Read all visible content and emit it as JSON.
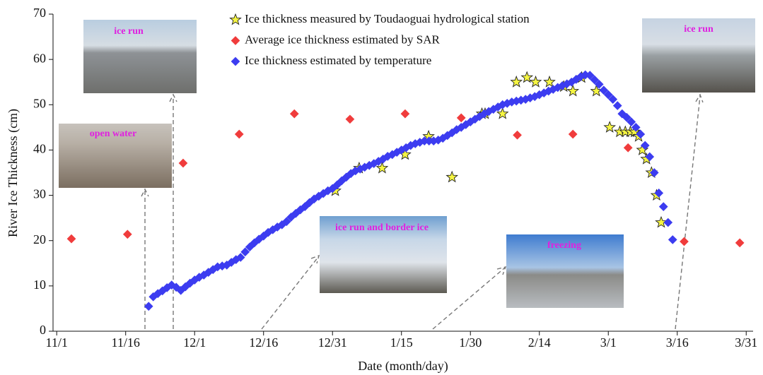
{
  "chart_data": {
    "type": "scatter",
    "x_label": "Date (month/day)",
    "y_label": "River Ice Thickness (cm)",
    "xlim": [
      -0.8,
      151.5
    ],
    "ylim": [
      0,
      70
    ],
    "xticks": [
      {
        "value": 0,
        "label": "11/1"
      },
      {
        "value": 15,
        "label": "11/16"
      },
      {
        "value": 30,
        "label": "12/1"
      },
      {
        "value": 45,
        "label": "12/16"
      },
      {
        "value": 60,
        "label": "12/31"
      },
      {
        "value": 75,
        "label": "1/15"
      },
      {
        "value": 90,
        "label": "1/30"
      },
      {
        "value": 105,
        "label": "2/14"
      },
      {
        "value": 120,
        "label": "3/1"
      },
      {
        "value": 135,
        "label": "3/16"
      },
      {
        "value": 150,
        "label": "3/31"
      }
    ],
    "yticks": [
      0,
      10,
      20,
      30,
      40,
      50,
      60,
      70
    ],
    "annotations": [
      "ice run",
      "open water",
      "ice run and border ice",
      "freezing",
      "ice run"
    ],
    "series": [
      {
        "name": "Ice thickness measured by Toudaoguai hydrological station",
        "color": "#f5f542",
        "marker": "star",
        "x": [
          60.6,
          65.8,
          70.8,
          75.8,
          80.9,
          86,
          92.5,
          93.2,
          97,
          100,
          102.3,
          104.2,
          107.2,
          110.3,
          112.3,
          114.2,
          117.4,
          120.3,
          122.5,
          123.7,
          124.8,
          125.7,
          126.6,
          127.4,
          128.3,
          129.4,
          130.5,
          131.5
        ],
        "values": [
          31,
          36,
          36,
          39,
          43,
          34,
          48,
          48,
          48,
          55,
          56,
          55,
          55,
          54,
          53,
          56,
          53,
          45,
          44,
          44,
          44,
          44,
          43,
          40,
          38,
          35,
          30,
          24
        ]
      },
      {
        "name": "Average ice thickness estimated by SAR",
        "color": "#f03c3c",
        "marker": "diamond",
        "x": [
          3.2,
          15.4,
          27.5,
          39.7,
          51.7,
          63.8,
          75.8,
          88,
          100.2,
          112.3,
          124.3,
          136.5,
          148.6
        ],
        "values": [
          20.4,
          21.4,
          37.1,
          43.5,
          48,
          46.8,
          48,
          47.1,
          43.3,
          43.5,
          40.5,
          19.8,
          19.5
        ]
      },
      {
        "name": "Ice thickness estimated by temperature",
        "color": "#3c3cf0",
        "marker": "diamond",
        "x": [
          20,
          21,
          22,
          23,
          24,
          25,
          26,
          27,
          28,
          29,
          30,
          31,
          32,
          33,
          34,
          35,
          36,
          37,
          38,
          39,
          40,
          41,
          42,
          43,
          44,
          45,
          46,
          47,
          48,
          49,
          50,
          51,
          52,
          53,
          54,
          55,
          56,
          57,
          58,
          59,
          60,
          61,
          62,
          63,
          64,
          65,
          66,
          67,
          68,
          69,
          70,
          71,
          72,
          73,
          74,
          75,
          76,
          77,
          78,
          79,
          80,
          81,
          82,
          83,
          84,
          85,
          86,
          87,
          88,
          89,
          90,
          91,
          92,
          93,
          94,
          95,
          96,
          97,
          98,
          99,
          100,
          101,
          102,
          103,
          104,
          105,
          106,
          107,
          108,
          109,
          110,
          111,
          112,
          113,
          114,
          115,
          116,
          117,
          118,
          119,
          120,
          121,
          122,
          123,
          124,
          125,
          126,
          127,
          128,
          129,
          130,
          131,
          132,
          133,
          134
        ],
        "values": [
          5.5,
          7.6,
          8.3,
          8.9,
          9.6,
          10.2,
          9.7,
          9.0,
          9.8,
          10.6,
          11.3,
          11.9,
          12.4,
          13.0,
          13.6,
          14.2,
          14.4,
          14.6,
          15.2,
          15.8,
          16.3,
          17.5,
          18.6,
          19.5,
          20.3,
          21.0,
          21.8,
          22.4,
          23.0,
          23.5,
          24.2,
          25.2,
          26.0,
          26.8,
          27.5,
          28.4,
          29.2,
          29.8,
          30.4,
          31.0,
          31.5,
          32.3,
          33.2,
          34.0,
          34.8,
          35.4,
          35.8,
          36.2,
          36.6,
          37.0,
          37.5,
          38.0,
          38.6,
          39.0,
          39.5,
          40.0,
          40.5,
          41.0,
          41.4,
          41.7,
          42.0,
          42.0,
          42.0,
          42.2,
          42.6,
          43.2,
          43.8,
          44.5,
          45.0,
          45.6,
          46.2,
          46.8,
          47.4,
          48.0,
          48.5,
          49.0,
          49.5,
          50.0,
          50.3,
          50.6,
          50.8,
          51.0,
          51.2,
          51.5,
          51.8,
          52.2,
          52.6,
          53.0,
          53.4,
          53.8,
          54.2,
          54.6,
          55.0,
          55.6,
          56.2,
          56.6,
          56.5,
          55.5,
          54.5,
          53.2,
          52.2,
          51.2,
          49.8,
          48.0,
          47.2,
          46.2,
          45.0,
          43.5,
          41.0,
          38.5,
          35.0,
          30.5,
          27.5,
          24.0,
          20.2
        ]
      }
    ]
  }
}
